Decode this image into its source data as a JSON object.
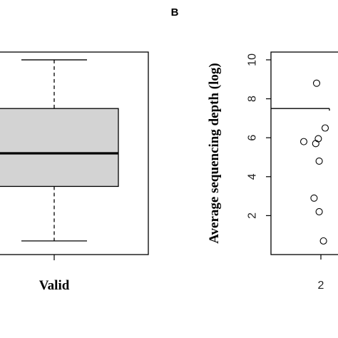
{
  "chart_data": [
    {
      "type": "box",
      "panel": "",
      "categories": [
        "Valid"
      ],
      "box": {
        "whisker_low": 0.7,
        "q1": 3.5,
        "median": 5.2,
        "q3": 7.5,
        "whisker_high": 10.0
      },
      "ylim": [
        0.0,
        10.4
      ],
      "xlabel": "",
      "ylabel": "",
      "box_fill": "#d3d3d3",
      "median_color": "#000000",
      "grid": false
    },
    {
      "type": "scatter",
      "panel": "B",
      "x_tick_labels": [
        "2"
      ],
      "y_ticks": [
        2,
        4,
        6,
        8,
        10
      ],
      "ylim": [
        0.0,
        10.4
      ],
      "ylabel": "Average sequencing depth (log)",
      "threshold_line": 7.5,
      "points": [
        {
          "x": 1.8,
          "y": 5.8
        },
        {
          "x": 1.95,
          "y": 8.8
        },
        {
          "x": 1.94,
          "y": 5.7
        },
        {
          "x": 1.97,
          "y": 5.95
        },
        {
          "x": 1.98,
          "y": 4.8
        },
        {
          "x": 1.92,
          "y": 2.9
        },
        {
          "x": 1.98,
          "y": 2.2
        },
        {
          "x": 2.03,
          "y": 0.7
        },
        {
          "x": 2.05,
          "y": 6.5
        }
      ],
      "marker": "open-circle",
      "grid": false
    }
  ]
}
